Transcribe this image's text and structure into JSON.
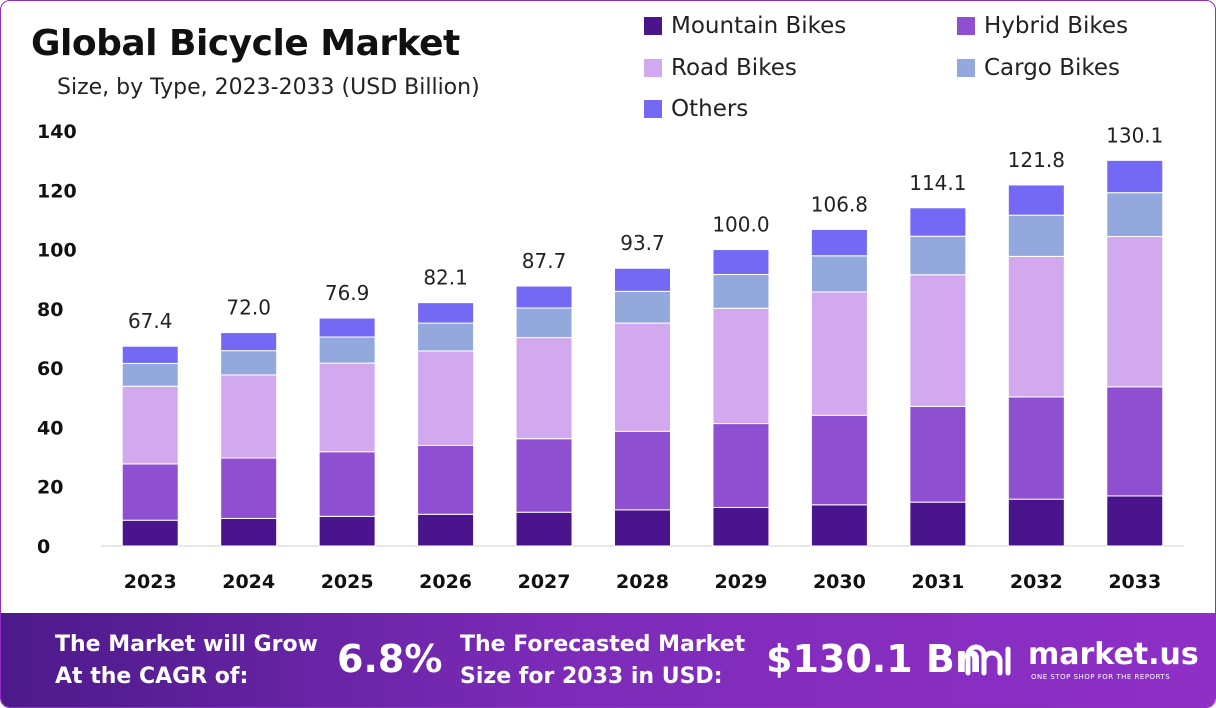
{
  "colors": {
    "mountain": "#4a148c",
    "hybrid": "#8e4fd0",
    "road": "#d2a8ee",
    "cargo": "#93a8dc",
    "others": "#7369f5",
    "footer_start": "#4c1a8a",
    "footer_end": "#8f2fc7"
  },
  "chart_data": {
    "type": "bar",
    "stacked": true,
    "title": "Global Bicycle Market",
    "subtitle": "Size, by Type, 2023-2033 (USD Billion)",
    "xlabel": "",
    "ylabel": "",
    "ylim": [
      0,
      140
    ],
    "yticks": [
      0,
      20,
      40,
      60,
      80,
      100,
      120,
      140
    ],
    "grid": false,
    "legend_position": "top-right",
    "categories": [
      "2023",
      "2024",
      "2025",
      "2026",
      "2027",
      "2028",
      "2029",
      "2030",
      "2031",
      "2032",
      "2033"
    ],
    "totals": [
      "67.4",
      "72.0",
      "76.9",
      "82.1",
      "87.7",
      "93.7",
      "100.0",
      "106.8",
      "114.1",
      "121.8",
      "130.1"
    ],
    "series": [
      {
        "name": "Mountain Bikes",
        "color_key": "mountain",
        "values": [
          8.7,
          9.3,
          10.0,
          10.7,
          11.4,
          12.2,
          13.0,
          13.9,
          14.8,
          15.8,
          16.9
        ]
      },
      {
        "name": "Hybrid Bikes",
        "color_key": "hybrid",
        "values": [
          19.0,
          20.4,
          21.8,
          23.2,
          24.8,
          26.5,
          28.3,
          30.2,
          32.3,
          34.5,
          36.8
        ]
      },
      {
        "name": "Road Bikes",
        "color_key": "road",
        "values": [
          26.2,
          28.0,
          29.9,
          31.9,
          34.1,
          36.5,
          38.9,
          41.6,
          44.4,
          47.4,
          50.7
        ]
      },
      {
        "name": "Cargo Bikes",
        "color_key": "cargo",
        "values": [
          7.7,
          8.2,
          8.8,
          9.4,
          10.0,
          10.7,
          11.4,
          12.2,
          13.0,
          13.9,
          14.8
        ]
      },
      {
        "name": "Others",
        "color_key": "others",
        "values": [
          5.8,
          6.1,
          6.4,
          6.9,
          7.4,
          7.8,
          8.4,
          8.9,
          9.6,
          10.2,
          10.9
        ]
      }
    ]
  },
  "footer": {
    "cagr_line1": "The Market will Grow",
    "cagr_line2": "At the CAGR of:",
    "cagr_value": "6.8%",
    "forecast_line1": "The Forecasted Market",
    "forecast_line2": "Size for 2033 in USD:",
    "forecast_value": "$130.1 Bn",
    "brand_name": "market.us",
    "brand_tagline": "ONE STOP SHOP FOR THE REPORTS"
  },
  "icons": {
    "brand_logo": "market-us-logo-icon"
  }
}
